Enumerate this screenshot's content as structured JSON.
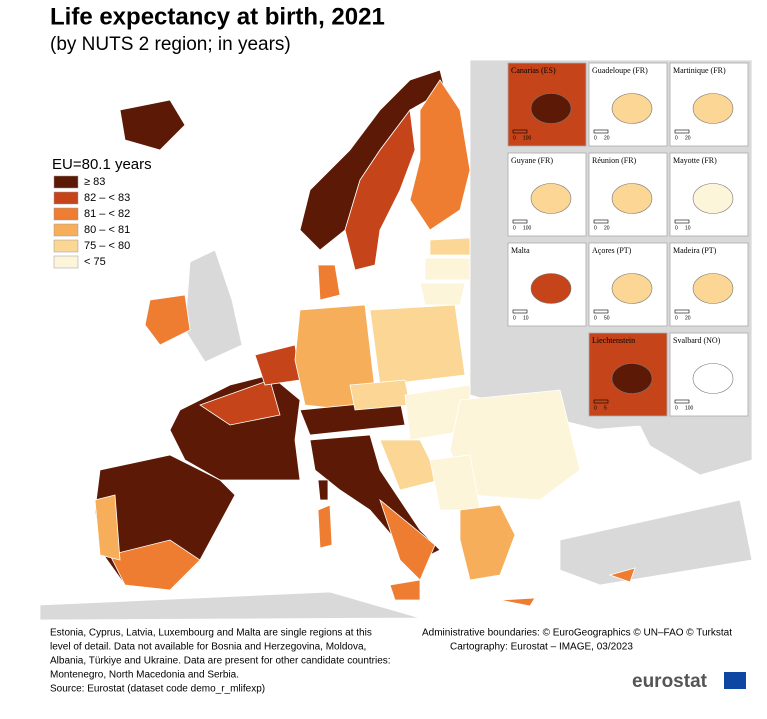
{
  "header": {
    "title": "Life expectancy at birth, 2021",
    "subtitle": "(by NUTS 2 region; in years)"
  },
  "legend": {
    "title": "EU=80.1 years",
    "items": [
      {
        "label": "≥ 83",
        "color": "#5c1a06"
      },
      {
        "label": "82 – < 83",
        "color": "#c5441a"
      },
      {
        "label": "81 – < 82",
        "color": "#ee7d31"
      },
      {
        "label": "80 – < 81",
        "color": "#f7ae5a"
      },
      {
        "label": "75 – < 80",
        "color": "#fbd694"
      },
      {
        "label": "< 75",
        "color": "#fdf5da"
      }
    ]
  },
  "insets": [
    {
      "name": "Canarias (ES)",
      "scale": [
        "0",
        "100"
      ],
      "color": "#5c1a06"
    },
    {
      "name": "Guadeloupe (FR)",
      "scale": [
        "0",
        "20"
      ],
      "color": "#fbd694"
    },
    {
      "name": "Martinique (FR)",
      "scale": [
        "0",
        "20"
      ],
      "color": "#fbd694"
    },
    {
      "name": "Guyane (FR)",
      "scale": [
        "0",
        "100"
      ],
      "color": "#fbd694"
    },
    {
      "name": "Réunion (FR)",
      "scale": [
        "0",
        "20"
      ],
      "color": "#fbd694"
    },
    {
      "name": "Mayotte (FR)",
      "scale": [
        "0",
        "10"
      ],
      "color": "#fdf5da"
    },
    {
      "name": "Malta",
      "scale": [
        "0",
        "10"
      ],
      "color": "#c5441a"
    },
    {
      "name": "Açores (PT)",
      "scale": [
        "0",
        "50"
      ],
      "color": "#fbd694"
    },
    {
      "name": "Madeira (PT)",
      "scale": [
        "0",
        "20"
      ],
      "color": "#fbd694"
    },
    {
      "name": "Liechtenstein",
      "scale": [
        "0",
        "5"
      ],
      "color": "#5c1a06"
    },
    {
      "name": "Svalbard (NO)",
      "scale": [
        "0",
        "100"
      ],
      "color": "#ffffff"
    }
  ],
  "footer": {
    "notes": [
      "Estonia, Cyprus, Latvia, Luxembourg and Malta are single regions at this",
      "level of detail. Data not available for Bosnia and Herzegovina, Moldova,",
      "Albania, Türkiye and Ukraine. Data are present for other candidate countries:",
      "Montenegro, North Macedonia and Serbia.",
      "Source: Eurostat (dataset code demo_r_mlifexp)"
    ],
    "credits": [
      "Administrative boundaries: © EuroGeographics © UN–FAO © Turkstat",
      "Cartography: Eurostat – IMAGE, 03/2023"
    ],
    "logo": "eurostat"
  }
}
